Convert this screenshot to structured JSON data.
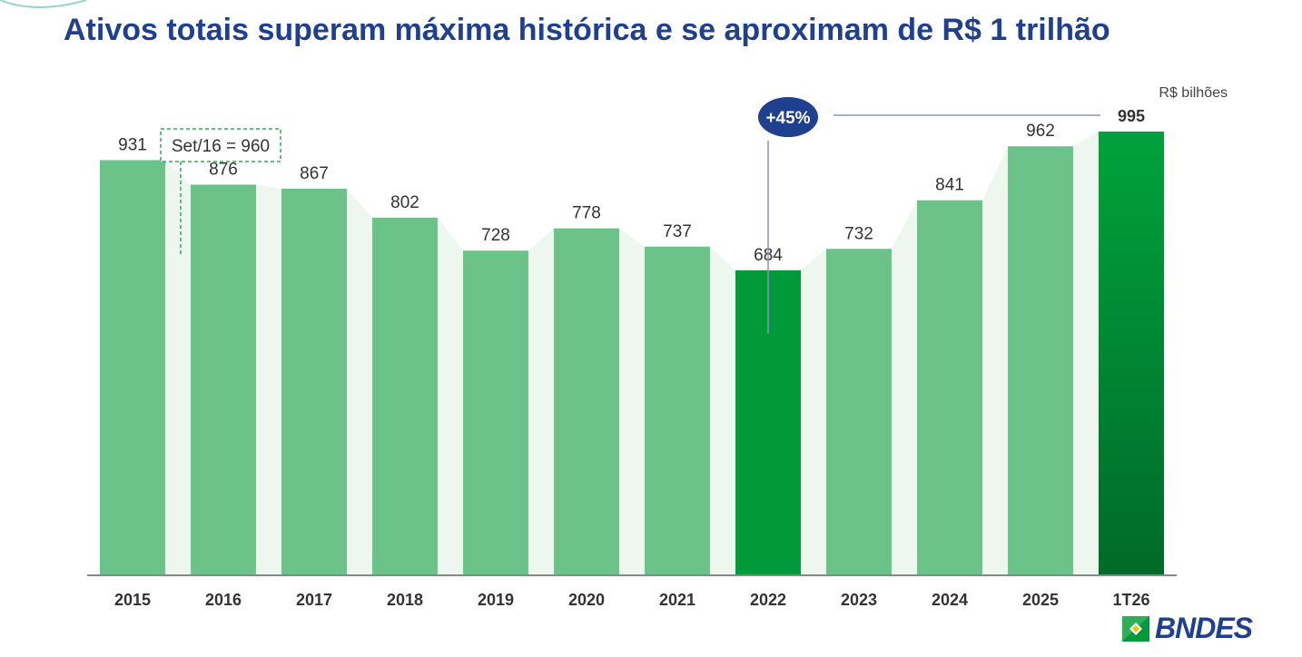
{
  "slide": {
    "title": "Ativos totais superam máxima histórica e se aproximam de R$ 1 trilhão",
    "unit": "R$ bilhões",
    "logo_text": "BNDES"
  },
  "colors": {
    "title": "#1f3f8f",
    "bar": "#6cc38a",
    "bar_highlight": "#009a3a",
    "bar_last_top": "#00a23c",
    "bar_last_bottom": "#006a28",
    "trend_area": "#eef7ef",
    "bubble": "#1f3f8f",
    "callout_border": "#2eae55"
  },
  "chart_data": {
    "type": "bar",
    "title": "Ativos totais superam máxima histórica e se aproximam de R$ 1 trilhão",
    "ylabel": "R$ bilhões",
    "ylim": [
      0,
      995
    ],
    "grid": false,
    "categories": [
      "2015",
      "2016",
      "2017",
      "2018",
      "2019",
      "2020",
      "2021",
      "2022",
      "2023",
      "2024",
      "2025",
      "1T26"
    ],
    "values": [
      931,
      876,
      867,
      802,
      728,
      778,
      737,
      684,
      732,
      841,
      962,
      995
    ],
    "value_labels": [
      "931",
      "876",
      "867",
      "802",
      "728",
      "778",
      "737",
      "684",
      "732",
      "841",
      "962",
      "995"
    ],
    "highlight_index": 7,
    "last_index": 11,
    "annotations": [
      {
        "text": "Set/16 = 960",
        "between_categories": [
          "2015",
          "2016"
        ]
      },
      {
        "text": "+45%",
        "from_category": "2022",
        "to_category": "1T26"
      }
    ]
  }
}
